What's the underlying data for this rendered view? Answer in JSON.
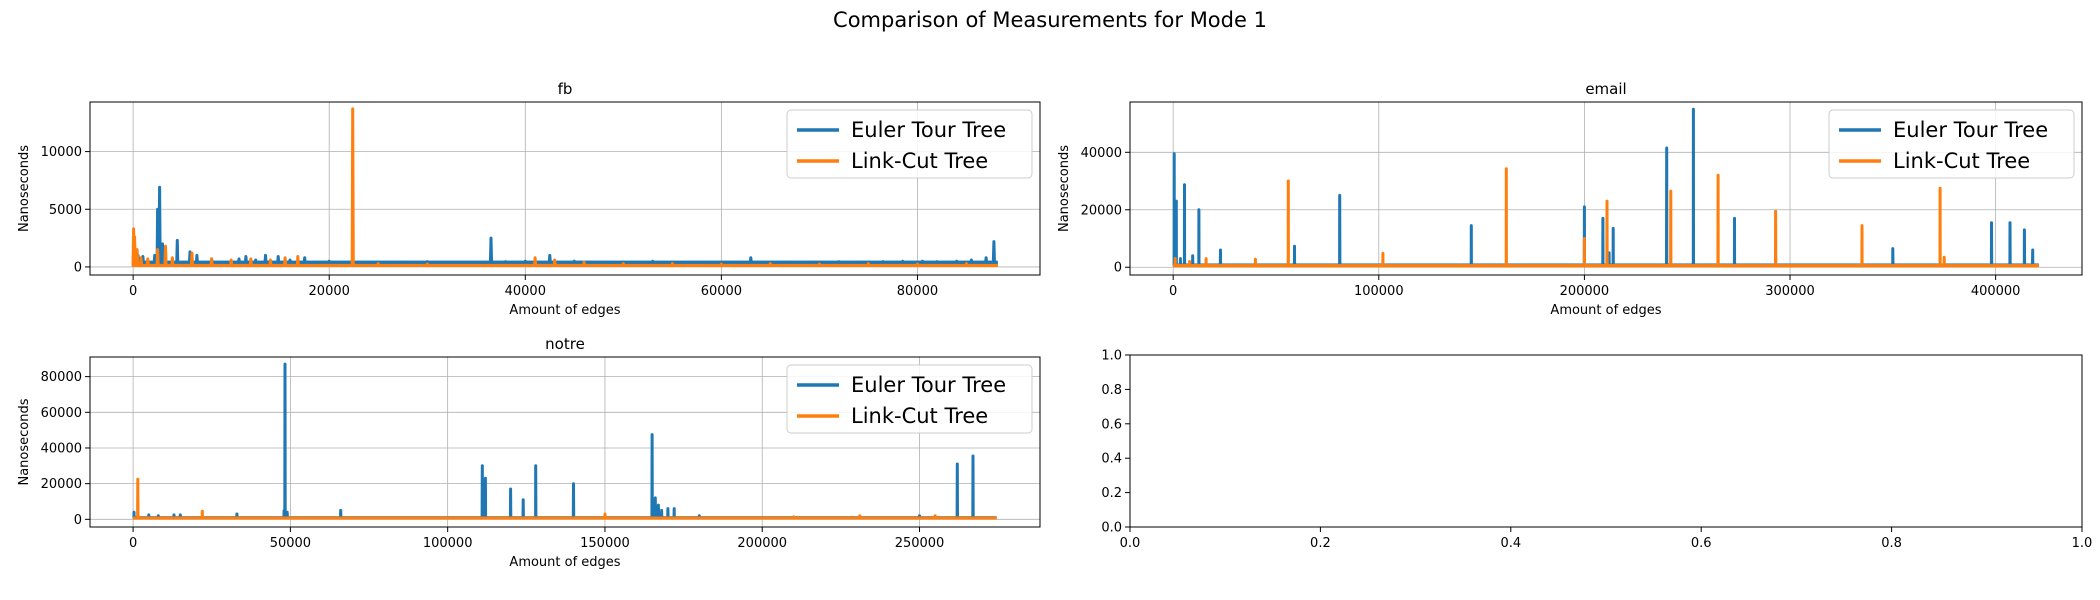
{
  "figure": {
    "title": "Comparison of Measurements for Mode 1"
  },
  "colors": {
    "euler": "#1f77b4",
    "linkcut": "#ff7f0e",
    "grid": "#b0b0b0",
    "axis": "#000000"
  },
  "chart_data": [
    {
      "type": "line",
      "title": "fb",
      "xlabel": "Amount of edges",
      "ylabel": "Nanoseconds",
      "xlim": [
        -4400,
        92500
      ],
      "ylim": [
        -700,
        14300
      ],
      "xticks": [
        0,
        20000,
        40000,
        60000,
        80000
      ],
      "xtick_labels": [
        "0",
        "20000",
        "40000",
        "60000",
        "80000"
      ],
      "yticks": [
        0,
        5000,
        10000
      ],
      "ytick_labels": [
        "0",
        "5000",
        "10000"
      ],
      "grid": true,
      "legend": "upper right",
      "series": [
        {
          "name": "Euler Tour Tree",
          "baseline": 250,
          "max_x": 88200,
          "spikes": [
            [
              200,
              1500
            ],
            [
              500,
              1000
            ],
            [
              1000,
              900
            ],
            [
              2200,
              1000
            ],
            [
              2500,
              5000
            ],
            [
              2700,
              6900
            ],
            [
              3000,
              2000
            ],
            [
              4500,
              2300
            ],
            [
              5800,
              1300
            ],
            [
              6500,
              1000
            ],
            [
              8000,
              700
            ],
            [
              10800,
              700
            ],
            [
              11500,
              900
            ],
            [
              12500,
              600
            ],
            [
              13500,
              1000
            ],
            [
              14800,
              900
            ],
            [
              16000,
              600
            ],
            [
              17500,
              800
            ],
            [
              20000,
              500
            ],
            [
              22000,
              400
            ],
            [
              25000,
              400
            ],
            [
              27500,
              400
            ],
            [
              30000,
              450
            ],
            [
              33000,
              350
            ],
            [
              36500,
              2500
            ],
            [
              38000,
              450
            ],
            [
              40000,
              500
            ],
            [
              42500,
              1000
            ],
            [
              45000,
              500
            ],
            [
              47500,
              350
            ],
            [
              50000,
              400
            ],
            [
              53000,
              500
            ],
            [
              56000,
              300
            ],
            [
              59000,
              350
            ],
            [
              61000,
              400
            ],
            [
              63000,
              800
            ],
            [
              65000,
              350
            ],
            [
              67000,
              400
            ],
            [
              69500,
              400
            ],
            [
              72000,
              450
            ],
            [
              74000,
              400
            ],
            [
              76500,
              450
            ],
            [
              78500,
              500
            ],
            [
              80500,
              500
            ],
            [
              82000,
              450
            ],
            [
              84000,
              500
            ],
            [
              85500,
              600
            ],
            [
              87000,
              800
            ],
            [
              87800,
              2200
            ]
          ]
        },
        {
          "name": "Link-Cut Tree",
          "baseline": 120,
          "max_x": 88200,
          "spikes": [
            [
              50,
              3300
            ],
            [
              150,
              2600
            ],
            [
              400,
              1500
            ],
            [
              800,
              800
            ],
            [
              1500,
              700
            ],
            [
              2500,
              1500
            ],
            [
              3300,
              1800
            ],
            [
              4000,
              800
            ],
            [
              6000,
              1200
            ],
            [
              8000,
              700
            ],
            [
              10000,
              600
            ],
            [
              12000,
              700
            ],
            [
              14000,
              600
            ],
            [
              15500,
              800
            ],
            [
              16800,
              900
            ],
            [
              22400,
              13700
            ],
            [
              25000,
              300
            ],
            [
              30000,
              250
            ],
            [
              41000,
              800
            ],
            [
              43000,
              600
            ],
            [
              46000,
              400
            ],
            [
              50000,
              300
            ],
            [
              55000,
              300
            ],
            [
              60000,
              250
            ],
            [
              65000,
              300
            ],
            [
              70000,
              250
            ],
            [
              75000,
              300
            ],
            [
              80000,
              250
            ],
            [
              85000,
              300
            ]
          ]
        }
      ]
    },
    {
      "type": "line",
      "title": "email",
      "xlabel": "Amount of edges",
      "ylabel": "Nanoseconds",
      "xlim": [
        -21000,
        442000
      ],
      "ylim": [
        -2700,
        57500
      ],
      "xticks": [
        0,
        100000,
        200000,
        300000,
        400000
      ],
      "xtick_labels": [
        "0",
        "100000",
        "200000",
        "300000",
        "400000"
      ],
      "yticks": [
        0,
        20000,
        40000
      ],
      "ytick_labels": [
        "0",
        "20000",
        "40000"
      ],
      "grid": true,
      "legend": "upper right",
      "series": [
        {
          "name": "Euler Tour Tree",
          "baseline": 600,
          "max_x": 421000,
          "spikes": [
            [
              500,
              39500
            ],
            [
              1500,
              23000
            ],
            [
              3500,
              3000
            ],
            [
              5500,
              28700
            ],
            [
              9500,
              4000
            ],
            [
              12500,
              20000
            ],
            [
              23000,
              6000
            ],
            [
              59000,
              7300
            ],
            [
              81000,
              25000
            ],
            [
              145000,
              14500
            ],
            [
              200000,
              21000
            ],
            [
              209000,
              17000
            ],
            [
              212000,
              5000
            ],
            [
              214000,
              13500
            ],
            [
              240000,
              41500
            ],
            [
              253000,
              55000
            ],
            [
              273000,
              17000
            ],
            [
              350000,
              6500
            ],
            [
              398000,
              15500
            ],
            [
              407000,
              15500
            ],
            [
              414000,
              13000
            ],
            [
              418000,
              6000
            ]
          ]
        },
        {
          "name": "Link-Cut Tree",
          "baseline": 500,
          "max_x": 421000,
          "spikes": [
            [
              1000,
              3000
            ],
            [
              8000,
              2000
            ],
            [
              16000,
              3000
            ],
            [
              40000,
              2800
            ],
            [
              56000,
              30000
            ],
            [
              102000,
              4800
            ],
            [
              162000,
              34300
            ],
            [
              200000,
              10000
            ],
            [
              211000,
              23000
            ],
            [
              242000,
              26500
            ],
            [
              265000,
              32000
            ],
            [
              293000,
              19500
            ],
            [
              335000,
              14500
            ],
            [
              373000,
              27500
            ],
            [
              375000,
              3500
            ]
          ]
        }
      ]
    },
    {
      "type": "line",
      "title": "notre",
      "xlabel": "Amount of edges",
      "ylabel": "Nanoseconds",
      "xlim": [
        -13700,
        288300
      ],
      "ylim": [
        -4300,
        91000
      ],
      "xticks": [
        0,
        50000,
        100000,
        150000,
        200000,
        250000
      ],
      "xtick_labels": [
        "0",
        "50000",
        "100000",
        "150000",
        "200000",
        "250000"
      ],
      "yticks": [
        0,
        20000,
        40000,
        60000,
        80000
      ],
      "ytick_labels": [
        "0",
        "20000",
        "40000",
        "60000",
        "80000"
      ],
      "grid": true,
      "legend": "upper right",
      "series": [
        {
          "name": "Euler Tour Tree",
          "baseline": 800,
          "max_x": 274500,
          "spikes": [
            [
              300,
              4000
            ],
            [
              5000,
              2500
            ],
            [
              8000,
              2000
            ],
            [
              13000,
              2500
            ],
            [
              15000,
              2500
            ],
            [
              33000,
              3000
            ],
            [
              48000,
              5000
            ],
            [
              48300,
              87000
            ],
            [
              49000,
              4000
            ],
            [
              66000,
              5000
            ],
            [
              111000,
              30000
            ],
            [
              112000,
              23000
            ],
            [
              120000,
              17000
            ],
            [
              124000,
              11000
            ],
            [
              128000,
              30000
            ],
            [
              140000,
              20000
            ],
            [
              165000,
              47500
            ],
            [
              166000,
              12000
            ],
            [
              167000,
              8000
            ],
            [
              168000,
              5000
            ],
            [
              170000,
              6000
            ],
            [
              172000,
              6000
            ],
            [
              180000,
              2000
            ],
            [
              250000,
              2000
            ],
            [
              262000,
              31000
            ],
            [
              267000,
              35500
            ]
          ]
        },
        {
          "name": "Link-Cut Tree",
          "baseline": 700,
          "max_x": 274500,
          "spikes": [
            [
              1500,
              22500
            ],
            [
              22000,
              4500
            ],
            [
              150000,
              3000
            ],
            [
              210000,
              1500
            ],
            [
              231000,
              2000
            ],
            [
              255000,
              2000
            ]
          ]
        }
      ]
    },
    {
      "type": "line",
      "title": "",
      "xlabel": "",
      "ylabel": "",
      "xlim": [
        0,
        1
      ],
      "ylim": [
        0,
        1
      ],
      "xticks": [
        0,
        0.2,
        0.4,
        0.6,
        0.8,
        1.0
      ],
      "xtick_labels": [
        "0.0",
        "0.2",
        "0.4",
        "0.6",
        "0.8",
        "1.0"
      ],
      "yticks": [
        0,
        0.2,
        0.4,
        0.6,
        0.8,
        1.0
      ],
      "ytick_labels": [
        "0.0",
        "0.2",
        "0.4",
        "0.6",
        "0.8",
        "1.0"
      ],
      "grid": false,
      "legend": "",
      "series": []
    }
  ]
}
